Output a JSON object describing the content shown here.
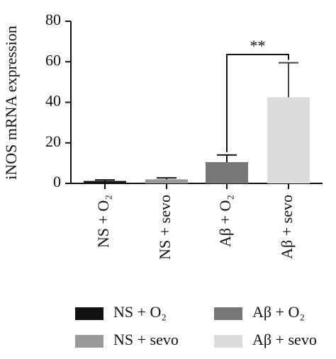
{
  "chart_data": {
    "type": "bar",
    "y_label": "iNOS mRNA expression",
    "categories": [
      "NS + O₂",
      "NS + sevo",
      "Aβ + O₂",
      "Aβ + sevo"
    ],
    "values": [
      1.2,
      2,
      10.5,
      42.5
    ],
    "errors": [
      0.5,
      0.7,
      3.5,
      17
    ],
    "colors": [
      "#111111",
      "#9a9a9a",
      "#777777",
      "#dcdcdc"
    ],
    "ylim": [
      0,
      80
    ],
    "yticks": [
      0,
      20,
      40,
      60,
      80
    ],
    "annotation": "**"
  }
}
